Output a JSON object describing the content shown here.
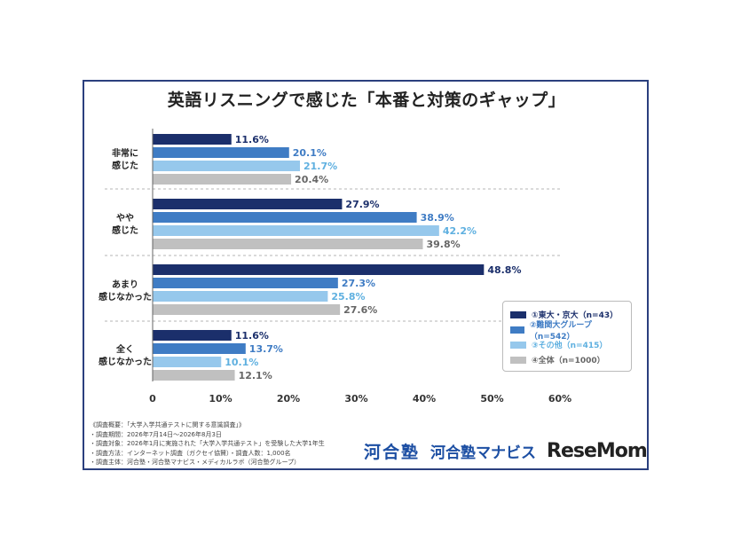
{
  "chart_data": {
    "type": "bar",
    "orientation": "horizontal",
    "title": "英語リスニングで感じた「本番と対策のギャップ」",
    "categories": [
      "非常に\n感じた",
      "やや\n感じた",
      "あまり\n感じなかった",
      "全く\n感じなかった"
    ],
    "series": [
      {
        "name": "①東大・京大（n=43）",
        "color": "#1b2f6b",
        "label_color": "#1b2f6b",
        "values": [
          11.6,
          27.9,
          48.8,
          11.6
        ]
      },
      {
        "name": "②難関大グループ（n=542）",
        "color": "#3f7cc4",
        "label_color": "#3f7cc4",
        "values": [
          20.1,
          38.9,
          27.3,
          13.7
        ]
      },
      {
        "name": "③その他（n=415）",
        "color": "#96c8ec",
        "label_color": "#5fb0e0",
        "values": [
          21.7,
          42.2,
          25.8,
          10.1
        ]
      },
      {
        "name": "④全体（n=1000）",
        "color": "#c0c0c0",
        "label_color": "#666666",
        "values": [
          20.4,
          39.8,
          27.6,
          12.1
        ]
      }
    ],
    "value_suffix": "%",
    "xlim": [
      0,
      60
    ],
    "xticks": [
      "0",
      "10%",
      "20%",
      "30%",
      "40%",
      "50%",
      "60%"
    ],
    "legend_position": "bottom-right",
    "grid": false
  },
  "notes": [
    "《調査概要：「大学入学共通テストに関する意識調査」》",
    "・調査期間：2026年7月14日～2026年8月3日",
    "・調査対象：2026年1月に実施された「大学入学共通テスト」を受験した大学1年生",
    "・調査方法：インターネット調査（ガクセイ協賛）・調査人数：1,000名",
    "・調査主体：河合塾・河合塾マナビス・メディカルラボ（河合塾グループ）"
  ],
  "logos": {
    "kawaijuku": "河合塾",
    "manabis": "河合塾マナビス",
    "resemom": "ReseMom"
  }
}
